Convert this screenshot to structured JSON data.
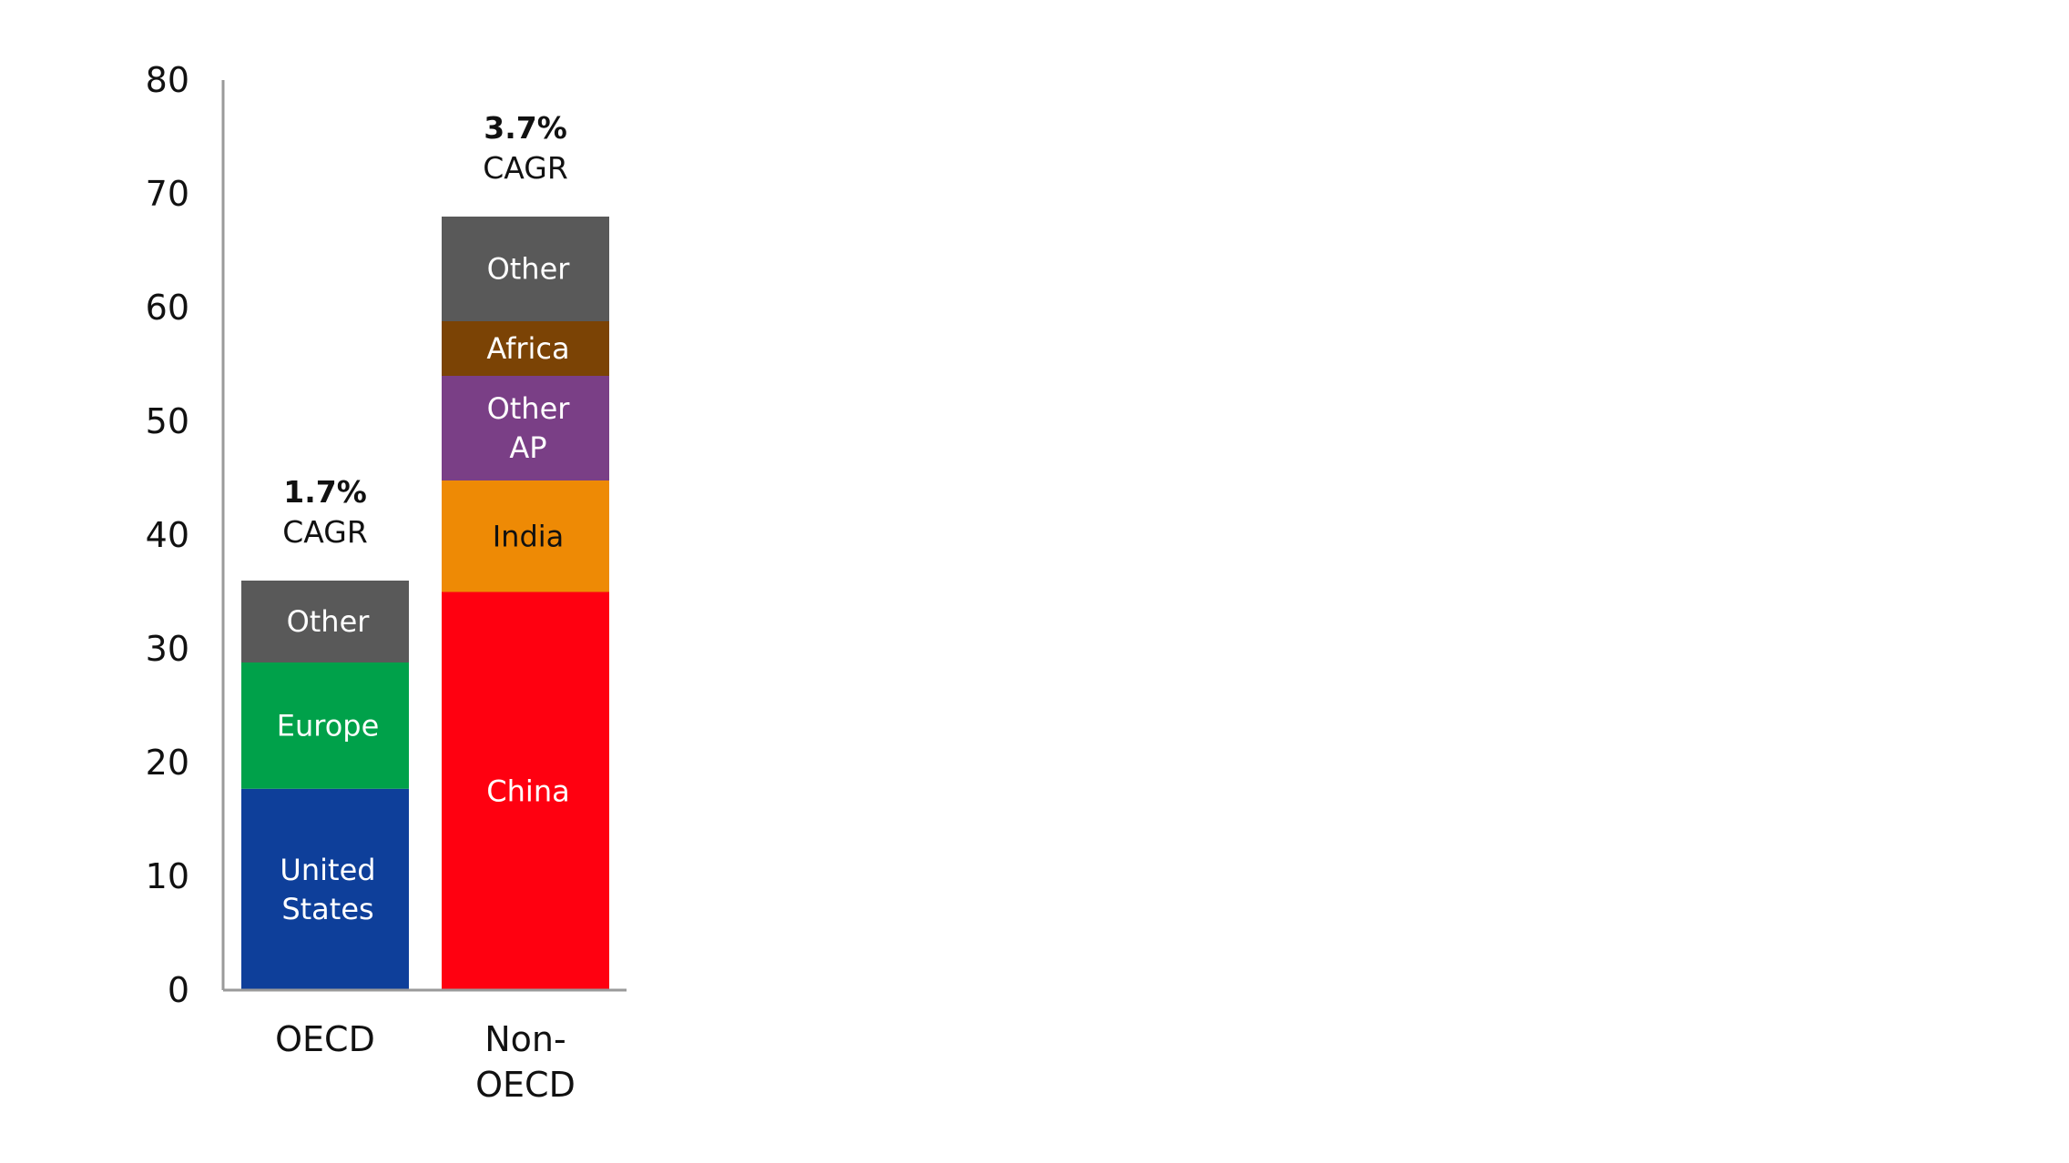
{
  "chart_data": {
    "type": "bar",
    "stacked": true,
    "title": "",
    "xlabel": "",
    "ylabel": "",
    "ylim": [
      0,
      80
    ],
    "yticks": [
      0,
      10,
      20,
      30,
      40,
      50,
      60,
      70,
      80
    ],
    "grid": false,
    "legend": "none",
    "categories": [
      {
        "lines": [
          "OECD"
        ]
      },
      {
        "lines": [
          "Non-",
          "OECD"
        ]
      }
    ],
    "totals": [
      36,
      68
    ],
    "annotations": [
      {
        "category": 0,
        "value": "1.7%",
        "text": "CAGR"
      },
      {
        "category": 1,
        "value": "3.7%",
        "text": "CAGR"
      }
    ],
    "stacks": [
      [
        {
          "label": [
            "United",
            "States"
          ],
          "value": 17.7,
          "color": "#0e3f9a",
          "text_color": "#ffffff"
        },
        {
          "label": [
            "Europe"
          ],
          "value": 11.1,
          "color": "#00a14a",
          "text_color": "#ffffff"
        },
        {
          "label": [
            "Other"
          ],
          "value": 7.2,
          "color": "#595959",
          "text_color": "#ffffff"
        }
      ],
      [
        {
          "label": [
            "China"
          ],
          "value": 35.0,
          "color": "#ff0010",
          "text_color": "#ffffff"
        },
        {
          "label": [
            "India"
          ],
          "value": 9.8,
          "color": "#ee8a05",
          "text_color": "#111111"
        },
        {
          "label": [
            "Other",
            "AP"
          ],
          "value": 9.2,
          "color": "#7a3f86",
          "text_color": "#ffffff"
        },
        {
          "label": [
            "Africa"
          ],
          "value": 4.8,
          "color": "#7b4305",
          "text_color": "#ffffff"
        },
        {
          "label": [
            "Other"
          ],
          "value": 9.2,
          "color": "#595959",
          "text_color": "#ffffff"
        }
      ]
    ]
  }
}
